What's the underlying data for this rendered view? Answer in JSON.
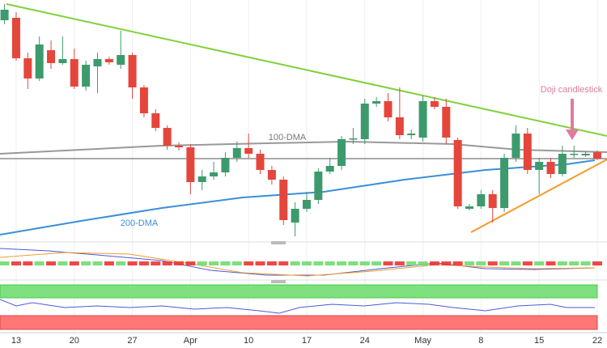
{
  "chart_data": {
    "type": "candlestick",
    "categories": [
      null,
      "13",
      null,
      null,
      null,
      null,
      "20",
      null,
      null,
      null,
      null,
      "27",
      null,
      null,
      null,
      null,
      "Apr",
      null,
      null,
      null,
      null,
      "10",
      null,
      null,
      null,
      null,
      "17",
      null,
      null,
      null,
      null,
      "24",
      null,
      null,
      null,
      null,
      "May",
      null,
      null,
      null,
      null,
      "8",
      null,
      null,
      null,
      null,
      "15",
      null,
      null,
      null,
      null,
      "22"
    ],
    "open": [
      275,
      278,
      228,
      203,
      238,
      222,
      227,
      193,
      218,
      227,
      220,
      232,
      192,
      160,
      142,
      120,
      118,
      75,
      82,
      87,
      105,
      117,
      110,
      90,
      78,
      25,
      42,
      53,
      88,
      95,
      128,
      128,
      172,
      175,
      155,
      133,
      130,
      175,
      168,
      127,
      42,
      45,
      60,
      43,
      105,
      135,
      90,
      100,
      85,
      110,
      108,
      112
    ],
    "high": [
      295,
      285,
      235,
      255,
      250,
      255,
      240,
      225,
      235,
      230,
      262,
      235,
      195,
      165,
      145,
      124,
      122,
      90,
      100,
      112,
      125,
      135,
      115,
      95,
      82,
      50,
      63,
      92,
      105,
      132,
      142,
      178,
      180,
      185,
      192,
      140,
      182,
      180,
      178,
      130,
      48,
      65,
      65,
      110,
      145,
      142,
      105,
      105,
      120,
      120,
      113,
      114
    ],
    "low": [
      270,
      225,
      190,
      200,
      215,
      220,
      190,
      188,
      185,
      220,
      215,
      178,
      155,
      138,
      115,
      114,
      60,
      65,
      78,
      82,
      100,
      105,
      85,
      72,
      22,
      8,
      38,
      48,
      85,
      90,
      122,
      122,
      168,
      150,
      128,
      128,
      125,
      165,
      122,
      42,
      40,
      42,
      25,
      38,
      100,
      85,
      60,
      80,
      82,
      105,
      106,
      102
    ],
    "close": [
      288,
      228,
      203,
      245,
      222,
      227,
      193,
      220,
      227,
      223,
      232,
      192,
      160,
      142,
      120,
      118,
      75,
      82,
      87,
      105,
      117,
      110,
      90,
      78,
      28,
      42,
      53,
      88,
      95,
      128,
      129,
      172,
      175,
      155,
      133,
      135,
      175,
      168,
      130,
      45,
      45,
      60,
      43,
      105,
      135,
      90,
      100,
      85,
      110,
      110,
      110,
      104
    ],
    "ylim": [
      0,
      300
    ],
    "colors": {
      "up": "#3d9a6c",
      "down": "#e5463c"
    },
    "annotations": [
      "Doji candlestick",
      "100-DMA",
      "200-DMA"
    ]
  }
}
